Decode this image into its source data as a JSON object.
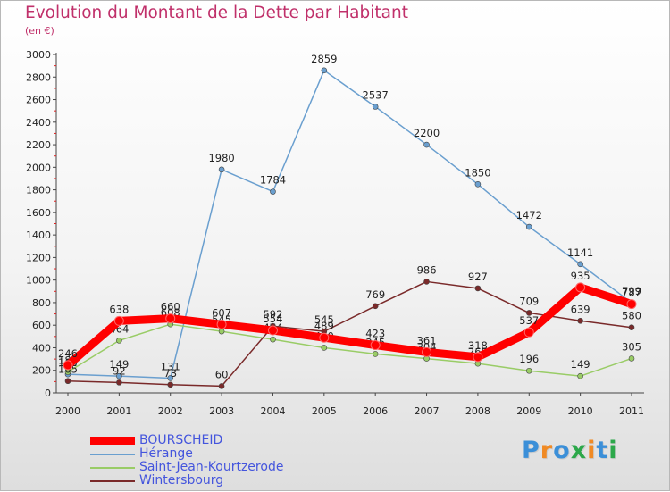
{
  "chart_data": {
    "type": "line",
    "title": "Evolution du Montant de la Dette par Habitant",
    "subtitle": "(en €)",
    "xlabel": "",
    "ylabel": "",
    "ylim": [
      0,
      3000
    ],
    "yticks": [
      "0",
      "200",
      "400",
      "600",
      "800",
      "1000",
      "1200",
      "1400",
      "1600",
      "1800",
      "2000",
      "2200",
      "2400",
      "2600",
      "2800",
      "3000"
    ],
    "categories": [
      "2000",
      "2001",
      "2002",
      "2003",
      "2004",
      "2005",
      "2006",
      "2007",
      "2008",
      "2009",
      "2010",
      "2011"
    ],
    "series": [
      {
        "name": "Hérange",
        "color": "#6a9fcf",
        "values": [
          165,
          149,
          131,
          1980,
          1784,
          2859,
          2537,
          2200,
          1850,
          1472,
          1141,
          799
        ]
      },
      {
        "name": "Saint-Jean-Kourtzerode",
        "color": "#99cc66",
        "values": [
          185,
          464,
          608,
          545,
          474,
          400,
          345,
          304,
          260,
          196,
          149,
          305
        ]
      },
      {
        "name": "Wintersbourg",
        "color": "#7a2a2a",
        "values": [
          105,
          92,
          73,
          60,
          592,
          545,
          769,
          986,
          927,
          709,
          639,
          580
        ]
      },
      {
        "name": "BOURSCHEID",
        "color": "#ff0000",
        "values": [
          246,
          638,
          660,
          607,
          554,
          489,
          423,
          361,
          318,
          537,
          935,
          787
        ]
      }
    ],
    "data_labels": {
      "Hérange": [
        "165",
        "149",
        "131",
        "1980",
        "1784",
        "2859",
        "2537",
        "2200",
        "1850",
        "1472",
        "1141",
        "799"
      ],
      "Saint-Jean-Kourtzerode": [
        "185",
        "464",
        "608",
        "545",
        "474",
        "400",
        "345",
        "304",
        "260",
        "196",
        "149",
        "305"
      ],
      "Wintersbourg": [
        "105",
        "92",
        "73",
        "60",
        "592",
        "545",
        "769",
        "986",
        "927",
        "709",
        "639",
        "580"
      ],
      "BOURSCHEID": [
        "246",
        "638",
        "660",
        "607",
        "554",
        "489",
        "423",
        "361",
        "318",
        "537",
        "935",
        "787"
      ]
    },
    "legend": [
      "BOURSCHEID",
      "Hérange",
      "Saint-Jean-Kourtzerode",
      "Wintersbourg"
    ],
    "legend_position": "bottom-left",
    "grid": false
  },
  "brand": {
    "letters": [
      "P",
      "r",
      "o",
      "x",
      "i",
      "t",
      "i"
    ],
    "colors": [
      "#3b8fd8",
      "#f08a24",
      "#3b8fd8",
      "#2ca84a",
      "#f08a24",
      "#3b8fd8",
      "#2ca84a"
    ]
  }
}
